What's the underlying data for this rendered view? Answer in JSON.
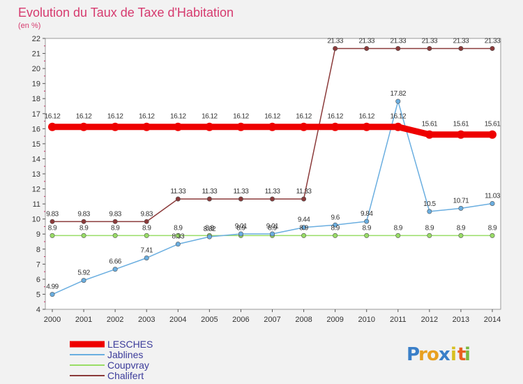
{
  "chart_data": {
    "type": "line",
    "title": "Evolution du Taux de Taxe d'Habitation",
    "subtitle": "(en %)",
    "x": [
      "2000",
      "2001",
      "2002",
      "2003",
      "2004",
      "2005",
      "2006",
      "2007",
      "2008",
      "2009",
      "2010",
      "2011",
      "2012",
      "2013",
      "2014"
    ],
    "yticks": [
      "4",
      "5",
      "6",
      "7",
      "8",
      "9",
      "10",
      "11",
      "12",
      "13",
      "14",
      "15",
      "16",
      "17",
      "18",
      "19",
      "20",
      "21",
      "22"
    ],
    "ylim": [
      4,
      22
    ],
    "grid": false,
    "legend_position": "bottom-left",
    "series": [
      {
        "name": "LESCHES",
        "color": "#ee0000",
        "values": [
          16.12,
          16.12,
          16.12,
          16.12,
          16.12,
          16.12,
          16.12,
          16.12,
          16.12,
          16.12,
          16.12,
          16.12,
          15.61,
          15.61,
          15.61
        ],
        "labels": [
          "16.12",
          "16.12",
          "16.12",
          "16.12",
          "16.12",
          "16.12",
          "16.12",
          "16.12",
          "16.12",
          "16.12",
          "16.12",
          "16.12",
          "15.61",
          "15.61",
          "15.61"
        ]
      },
      {
        "name": "Jablines",
        "color": "#6aaee0",
        "values": [
          4.99,
          5.92,
          6.66,
          7.41,
          8.33,
          8.82,
          9.01,
          9.01,
          9.44,
          9.6,
          9.84,
          17.82,
          10.5,
          10.71,
          11.03
        ],
        "labels": [
          "4.99",
          "5.92",
          "6.66",
          "7.41",
          "8.33",
          "8.82",
          "9.01",
          "9.01",
          "9.44",
          "9.6",
          "9.84",
          "17.82",
          "10.5",
          "10.71",
          "11.03"
        ]
      },
      {
        "name": "Coupvray",
        "color": "#99dd66",
        "values": [
          8.9,
          8.9,
          8.9,
          8.9,
          8.9,
          8.9,
          8.9,
          8.9,
          8.9,
          8.9,
          8.9,
          8.9,
          8.9,
          8.9,
          8.9
        ],
        "labels": [
          "8.9",
          "8.9",
          "8.9",
          "8.9",
          "8.9",
          "8.9",
          "8.9",
          "8.9",
          "8.9",
          "8.9",
          "8.9",
          "8.9",
          "8.9",
          "8.9",
          "8.9"
        ]
      },
      {
        "name": "Chalifert",
        "color": "#8b3a3a",
        "values": [
          9.83,
          9.83,
          9.83,
          9.83,
          11.33,
          11.33,
          11.33,
          11.33,
          11.33,
          21.33,
          21.33,
          21.33,
          21.33,
          21.33,
          21.33
        ],
        "labels": [
          "9.83",
          "9.83",
          "9.83",
          "9.83",
          "11.33",
          "11.33",
          "11.33",
          "11.33",
          "11.33",
          "21.33",
          "21.33",
          "21.33",
          "21.33",
          "21.33",
          "21.33"
        ]
      }
    ]
  },
  "brand": {
    "letters": [
      "P",
      "r",
      "o",
      "x",
      "i",
      "t",
      "i"
    ],
    "colors": [
      "#3a7fc8",
      "#e8a020",
      "#e8a020",
      "#3a7fc8",
      "#d8c020",
      "#e86020",
      "#7ab840"
    ]
  }
}
